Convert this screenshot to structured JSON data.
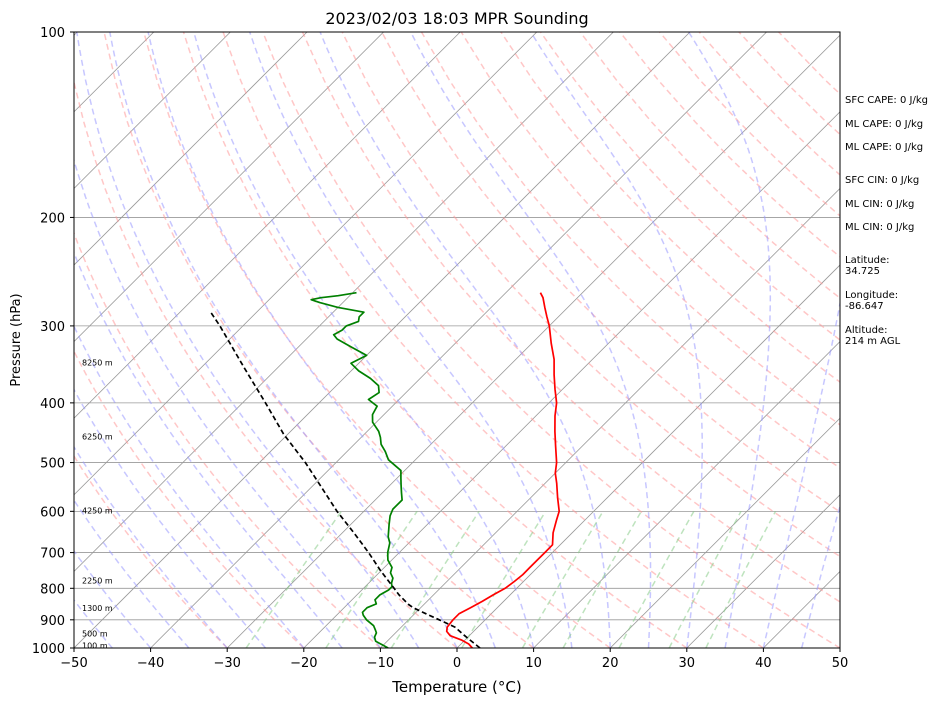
{
  "chart_data": {
    "type": "line",
    "title": "2023/02/03 18:03 MPR Sounding",
    "xlabel": "Temperature (°C)",
    "ylabel": "Pressure (hPa)",
    "x_scale": "skew-T (isotherms skewed 45°)",
    "y_scale": "log",
    "xlim": [
      -50,
      50
    ],
    "ylim": [
      1000,
      100
    ],
    "x_ticks": [
      "−50",
      "−40",
      "−30",
      "−20",
      "−10",
      "0",
      "10",
      "20",
      "30",
      "40",
      "50"
    ],
    "y_ticks": [
      "100",
      "200",
      "300",
      "400",
      "500",
      "600",
      "700",
      "800",
      "900",
      "1000"
    ],
    "series": [
      {
        "kind": "temperature",
        "color": "#ff0000",
        "points": [
          [
            1000,
            2.0
          ],
          [
            985,
            1.0
          ],
          [
            970,
            -0.5
          ],
          [
            955,
            -2.5
          ],
          [
            940,
            -3.5
          ],
          [
            925,
            -4.0
          ],
          [
            900,
            -4.2
          ],
          [
            880,
            -4.2
          ],
          [
            860,
            -3.5
          ],
          [
            840,
            -2.8
          ],
          [
            820,
            -2.2
          ],
          [
            800,
            -1.5
          ],
          [
            780,
            -1.2
          ],
          [
            760,
            -1.0
          ],
          [
            740,
            -1.0
          ],
          [
            720,
            -1.0
          ],
          [
            700,
            -1.0
          ],
          [
            680,
            -1.0
          ],
          [
            650,
            -2.5
          ],
          [
            620,
            -3.7
          ],
          [
            600,
            -4.5
          ],
          [
            570,
            -6.5
          ],
          [
            540,
            -8.5
          ],
          [
            520,
            -10.0
          ],
          [
            500,
            -11.2
          ],
          [
            470,
            -13.5
          ],
          [
            445,
            -15.5
          ],
          [
            420,
            -17.5
          ],
          [
            400,
            -19.0
          ],
          [
            380,
            -21.0
          ],
          [
            360,
            -23.0
          ],
          [
            340,
            -25.0
          ],
          [
            320,
            -27.5
          ],
          [
            300,
            -30.0
          ],
          [
            290,
            -31.5
          ],
          [
            280,
            -33.0
          ],
          [
            270,
            -34.5
          ],
          [
            265,
            -35.5
          ]
        ]
      },
      {
        "kind": "dewpoint",
        "color": "#008000",
        "points": [
          [
            1000,
            -9.0
          ],
          [
            990,
            -10.0
          ],
          [
            975,
            -11.5
          ],
          [
            960,
            -12.2
          ],
          [
            945,
            -12.5
          ],
          [
            935,
            -13.0
          ],
          [
            920,
            -13.8
          ],
          [
            900,
            -15.5
          ],
          [
            885,
            -16.5
          ],
          [
            875,
            -17.0
          ],
          [
            860,
            -17.0
          ],
          [
            848,
            -16.3
          ],
          [
            835,
            -17.0
          ],
          [
            820,
            -17.0
          ],
          [
            805,
            -16.5
          ],
          [
            795,
            -16.5
          ],
          [
            785,
            -17.0
          ],
          [
            770,
            -17.5
          ],
          [
            755,
            -18.5
          ],
          [
            740,
            -19.0
          ],
          [
            720,
            -20.5
          ],
          [
            700,
            -21.5
          ],
          [
            675,
            -22.5
          ],
          [
            660,
            -23.5
          ],
          [
            630,
            -25.0
          ],
          [
            610,
            -26.0
          ],
          [
            595,
            -26.5
          ],
          [
            575,
            -26.5
          ],
          [
            560,
            -27.5
          ],
          [
            545,
            -28.5
          ],
          [
            530,
            -29.5
          ],
          [
            515,
            -30.5
          ],
          [
            505,
            -32.0
          ],
          [
            495,
            -33.5
          ],
          [
            480,
            -35.0
          ],
          [
            467,
            -36.5
          ],
          [
            455,
            -37.5
          ],
          [
            445,
            -38.5
          ],
          [
            430,
            -40.5
          ],
          [
            418,
            -41.5
          ],
          [
            405,
            -42.0
          ],
          [
            395,
            -44.0
          ],
          [
            385,
            -43.5
          ],
          [
            375,
            -44.5
          ],
          [
            365,
            -46.5
          ],
          [
            355,
            -49.0
          ],
          [
            345,
            -51.0
          ],
          [
            335,
            -50.0
          ],
          [
            325,
            -53.0
          ],
          [
            315,
            -56.0
          ],
          [
            310,
            -57.0
          ],
          [
            305,
            -56.5
          ],
          [
            300,
            -56.5
          ],
          [
            295,
            -55.5
          ],
          [
            290,
            -56.0
          ],
          [
            285,
            -56.0
          ],
          [
            280,
            -60.0
          ],
          [
            275,
            -63.0
          ],
          [
            272,
            -64.5
          ],
          [
            270,
            -63.5
          ],
          [
            268,
            -61.5
          ],
          [
            265,
            -59.5
          ]
        ]
      },
      {
        "kind": "parcel",
        "color": "#000000",
        "style": "dashed",
        "points": [
          [
            1000,
            3.0
          ],
          [
            965,
            0.2
          ],
          [
            950,
            -1.0
          ],
          [
            925,
            -3.0
          ],
          [
            915,
            -4.2
          ],
          [
            900,
            -6.0
          ],
          [
            880,
            -8.5
          ],
          [
            860,
            -11.0
          ],
          [
            850,
            -12.0
          ],
          [
            820,
            -14.5
          ],
          [
            800,
            -16.0
          ],
          [
            750,
            -20.0
          ],
          [
            700,
            -24.0
          ],
          [
            650,
            -28.5
          ],
          [
            600,
            -33.5
          ],
          [
            550,
            -38.5
          ],
          [
            500,
            -44.0
          ],
          [
            450,
            -50.5
          ],
          [
            400,
            -57.0
          ],
          [
            350,
            -64.5
          ],
          [
            300,
            -73.0
          ],
          [
            285,
            -76.0
          ]
        ]
      }
    ],
    "height_labels": [
      {
        "text": "100 m",
        "p": 995
      },
      {
        "text": "500 m",
        "p": 950
      },
      {
        "text": "1300 m",
        "p": 865
      },
      {
        "text": "2250 m",
        "p": 780
      },
      {
        "text": "4250 m",
        "p": 600
      },
      {
        "text": "6250 m",
        "p": 455
      },
      {
        "text": "8250 m",
        "p": 345
      }
    ],
    "background_lines": {
      "isotherms_color": "#999999",
      "dry_adiabats_color": "#ff9999",
      "moist_adiabats_color": "#9999ff",
      "mixing_ratio_color": "#88cc88",
      "isobars_color": "#999999"
    }
  },
  "side_info": {
    "sfc_cape": "SFC CAPE: 0 J/kg",
    "ml_cape_1": "ML CAPE: 0 J/kg",
    "ml_cape_2": "ML CAPE: 0 J/kg",
    "sfc_cin": "SFC CIN: 0 J/kg",
    "ml_cin_1": "ML CIN: 0 J/kg",
    "ml_cin_2": "ML CIN: 0 J/kg",
    "latitude_label": "Latitude:",
    "latitude_value": "34.725",
    "longitude_label": "Longitude:",
    "longitude_value": "-86.647",
    "altitude_label": "Altitude:",
    "altitude_value": "214 m AGL"
  }
}
